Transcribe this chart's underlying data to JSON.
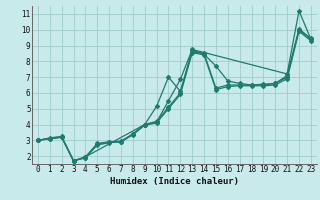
{
  "xlabel": "Humidex (Indice chaleur)",
  "xlim": [
    -0.5,
    23.5
  ],
  "ylim": [
    1.5,
    11.5
  ],
  "xticks": [
    0,
    1,
    2,
    3,
    4,
    5,
    6,
    7,
    8,
    9,
    10,
    11,
    12,
    13,
    14,
    15,
    16,
    17,
    18,
    19,
    20,
    21,
    22,
    23
  ],
  "yticks": [
    2,
    3,
    4,
    5,
    6,
    7,
    8,
    9,
    10,
    11
  ],
  "background_color": "#c8eaea",
  "grid_color": "#a0cccc",
  "line_color": "#1e7b6e",
  "series": [
    {
      "x": [
        0,
        1,
        2,
        3,
        4,
        5,
        6,
        7,
        8,
        9,
        10,
        11,
        12,
        13,
        14,
        15,
        16,
        17,
        18,
        19,
        20,
        21,
        22,
        23
      ],
      "y": [
        3.0,
        3.1,
        3.2,
        1.7,
        1.9,
        2.7,
        2.85,
        2.9,
        3.35,
        3.95,
        4.1,
        5.0,
        5.9,
        8.55,
        8.4,
        6.2,
        6.4,
        6.45,
        6.45,
        6.45,
        6.5,
        6.9,
        9.9,
        9.3
      ]
    },
    {
      "x": [
        0,
        1,
        2,
        3,
        4,
        5,
        6,
        7,
        8,
        9,
        10,
        11,
        12,
        13,
        14,
        15,
        16,
        17,
        18,
        19,
        20,
        21,
        22,
        23
      ],
      "y": [
        3.0,
        3.1,
        3.2,
        1.7,
        1.9,
        2.75,
        2.9,
        2.9,
        3.4,
        4.0,
        4.2,
        5.1,
        6.0,
        8.6,
        8.5,
        6.3,
        6.5,
        6.5,
        6.5,
        6.55,
        6.6,
        7.0,
        10.0,
        9.4
      ]
    },
    {
      "x": [
        0,
        1,
        2,
        3,
        4,
        5,
        6,
        7,
        8,
        9,
        10,
        11,
        12,
        13,
        14,
        15,
        16,
        17,
        18,
        19,
        20,
        21,
        22,
        23
      ],
      "y": [
        3.0,
        3.15,
        3.25,
        1.7,
        1.95,
        2.8,
        2.9,
        2.95,
        3.4,
        4.0,
        5.15,
        7.0,
        6.1,
        8.7,
        8.45,
        7.7,
        6.75,
        6.6,
        6.5,
        6.5,
        6.6,
        7.1,
        10.05,
        9.45
      ]
    },
    {
      "x": [
        0,
        2,
        3,
        4,
        9,
        10,
        11,
        12,
        13,
        21,
        22,
        23
      ],
      "y": [
        3.0,
        3.2,
        1.7,
        1.95,
        4.0,
        4.15,
        5.5,
        6.85,
        8.75,
        7.2,
        11.2,
        9.4
      ]
    }
  ]
}
